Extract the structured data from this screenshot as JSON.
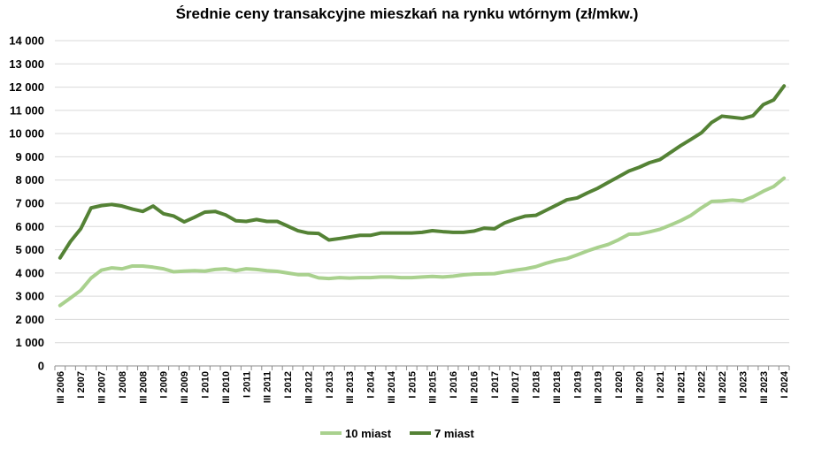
{
  "chart_data": {
    "type": "line",
    "title": "Średnie ceny transakcyjne mieszkań na rynku wtórnym (zł/mkw.)",
    "xlabel": "",
    "ylabel": "",
    "ylim": [
      0,
      14000
    ],
    "yticks": [
      0,
      1000,
      2000,
      3000,
      4000,
      5000,
      6000,
      7000,
      8000,
      9000,
      10000,
      11000,
      12000,
      13000,
      14000
    ],
    "ytick_labels": [
      "0",
      "1 000",
      "2 000",
      "3 000",
      "4 000",
      "5 000",
      "6 000",
      "7 000",
      "8 000",
      "9 000",
      "10 000",
      "11 000",
      "12 000",
      "13 000",
      "14 000"
    ],
    "grid": true,
    "legend_position": "bottom",
    "x": [
      "III 2006",
      "IV 2006",
      "I 2007",
      "II 2007",
      "III 2007",
      "IV 2007",
      "I 2008",
      "II 2008",
      "III 2008",
      "IV 2008",
      "I 2009",
      "II 2009",
      "III 2009",
      "IV 2009",
      "I 2010",
      "II 2010",
      "III 2010",
      "IV 2010",
      "I 2011",
      "II 2011",
      "III 2011",
      "IV 2011",
      "I 2012",
      "II 2012",
      "III 2012",
      "IV 2012",
      "I 2013",
      "II 2013",
      "III 2013",
      "IV 2013",
      "I 2014",
      "II 2014",
      "III 2014",
      "IV 2014",
      "I 2015",
      "II 2015",
      "III 2015",
      "IV 2015",
      "I 2016",
      "II 2016",
      "III 2016",
      "IV 2016",
      "I 2017",
      "II 2017",
      "III 2017",
      "IV 2017",
      "I 2018",
      "II 2018",
      "III 2018",
      "IV 2018",
      "I 2019",
      "II 2019",
      "III 2019",
      "IV 2019",
      "I 2020",
      "II 2020",
      "III 2020",
      "IV 2020",
      "I 2021",
      "II 2021",
      "III 2021",
      "IV 2021",
      "I 2022",
      "II 2022",
      "III 2022",
      "IV 2022",
      "I 2023",
      "II 2023",
      "III 2023",
      "IV 2023",
      "I 2024"
    ],
    "x_tick_labels": [
      "III 2006",
      "I 2007",
      "III 2007",
      "I 2008",
      "III 2008",
      "I 2009",
      "III 2009",
      "I 2010",
      "III 2010",
      "I 2011",
      "III 2011",
      "I 2012",
      "III 2012",
      "I 2013",
      "III 2013",
      "I 2014",
      "III 2014",
      "I 2015",
      "III 2015",
      "I 2016",
      "III 2016",
      "I 2017",
      "III 2017",
      "I 2018",
      "III 2018",
      "I 2019",
      "III 2019",
      "I 2020",
      "III 2020",
      "I 2021",
      "III 2021",
      "I 2022",
      "III 2022",
      "I 2023",
      "III 2023",
      "I 2024"
    ],
    "series": [
      {
        "name": "10 miast",
        "color": "#a9d18e",
        "values": [
          2600,
          2920,
          3250,
          3780,
          4120,
          4220,
          4180,
          4300,
          4300,
          4250,
          4180,
          4050,
          4080,
          4100,
          4080,
          4150,
          4180,
          4100,
          4180,
          4150,
          4100,
          4070,
          4000,
          3930,
          3930,
          3790,
          3760,
          3800,
          3780,
          3800,
          3800,
          3830,
          3830,
          3800,
          3800,
          3830,
          3850,
          3830,
          3860,
          3920,
          3950,
          3960,
          3970,
          4050,
          4120,
          4180,
          4270,
          4420,
          4540,
          4620,
          4780,
          4950,
          5100,
          5230,
          5430,
          5670,
          5680,
          5770,
          5880,
          6060,
          6250,
          6480,
          6800,
          7080,
          7100,
          7140,
          7100,
          7280,
          7520,
          7720,
          8080
        ]
      },
      {
        "name": "7 miast",
        "color": "#548235",
        "values": [
          4650,
          5350,
          5900,
          6800,
          6900,
          6950,
          6880,
          6750,
          6650,
          6880,
          6550,
          6450,
          6200,
          6400,
          6620,
          6650,
          6500,
          6250,
          6220,
          6300,
          6220,
          6220,
          6020,
          5820,
          5720,
          5700,
          5420,
          5480,
          5550,
          5620,
          5620,
          5720,
          5720,
          5720,
          5720,
          5750,
          5820,
          5780,
          5750,
          5750,
          5800,
          5930,
          5900,
          6160,
          6320,
          6450,
          6480,
          6700,
          6920,
          7150,
          7230,
          7450,
          7650,
          7900,
          8140,
          8390,
          8550,
          8750,
          8880,
          9180,
          9480,
          9750,
          10030,
          10480,
          10750,
          10700,
          10650,
          10770,
          11250,
          11450,
          12050
        ]
      }
    ]
  }
}
